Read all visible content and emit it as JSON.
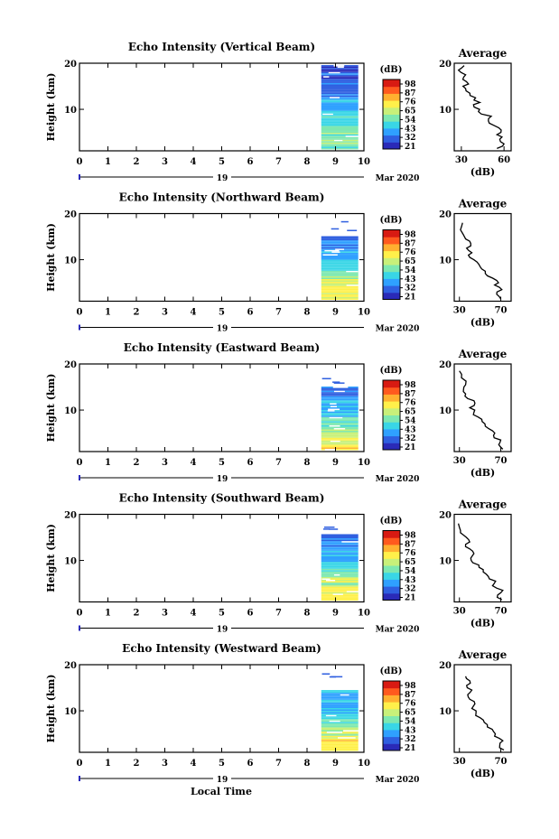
{
  "figure": {
    "date_day": "19",
    "date_label": "Mar 2020",
    "xlabel": "Local Time",
    "ylabel": "Height (km)",
    "units": "(dB)",
    "avg_title": "Average",
    "avg_xlabel": "(dB)",
    "colorbar_ticks": [
      "98",
      "87",
      "76",
      "65",
      "54",
      "43",
      "32",
      "21"
    ],
    "colorscale": [
      "#2a2ab8",
      "#2f5fe0",
      "#2fa0ff",
      "#39d6e6",
      "#7ee8b0",
      "#c8f07a",
      "#fff04a",
      "#ffb030",
      "#ff5a1e",
      "#d81a12"
    ]
  },
  "chart_data": [
    {
      "type": "heatmap",
      "title": "Echo Intensity (Vertical Beam)",
      "x_ticks": [
        "0",
        "1",
        "2",
        "3",
        "4",
        "5",
        "6",
        "7",
        "8",
        "9",
        "10"
      ],
      "y_ticks": [
        "20",
        "10"
      ],
      "xlim": [
        0,
        10
      ],
      "ylim": [
        1,
        20
      ],
      "data_x_range": [
        8.5,
        9.8
      ],
      "data_top_km": 19.5,
      "zlim": [
        21,
        98
      ],
      "average": {
        "x_ticks": [
          "30",
          "60"
        ],
        "xlim": [
          25,
          65
        ],
        "profile": [
          {
            "h": 1.5,
            "db": 55
          },
          {
            "h": 2.5,
            "db": 60
          },
          {
            "h": 3.5,
            "db": 57
          },
          {
            "h": 4.5,
            "db": 55
          },
          {
            "h": 5.5,
            "db": 58
          },
          {
            "h": 6.5,
            "db": 53
          },
          {
            "h": 7.5,
            "db": 49
          },
          {
            "h": 8.5,
            "db": 51
          },
          {
            "h": 9.5,
            "db": 42
          },
          {
            "h": 10.5,
            "db": 39
          },
          {
            "h": 11.5,
            "db": 43
          },
          {
            "h": 12.5,
            "db": 40
          },
          {
            "h": 13.5,
            "db": 36
          },
          {
            "h": 14.5,
            "db": 33
          },
          {
            "h": 15.5,
            "db": 35
          },
          {
            "h": 16.5,
            "db": 31
          },
          {
            "h": 17.5,
            "db": 33
          },
          {
            "h": 18.5,
            "db": 28
          },
          {
            "h": 19.5,
            "db": 32
          }
        ]
      }
    },
    {
      "type": "heatmap",
      "title": "Echo Intensity (Northward Beam)",
      "x_ticks": [
        "0",
        "1",
        "2",
        "3",
        "4",
        "5",
        "6",
        "7",
        "8",
        "9",
        "10"
      ],
      "y_ticks": [
        "20",
        "10"
      ],
      "xlim": [
        0,
        10
      ],
      "ylim": [
        1,
        20
      ],
      "data_x_range": [
        8.5,
        9.8
      ],
      "data_top_km": 15,
      "zlim": [
        21,
        98
      ],
      "average": {
        "x_ticks": [
          "30",
          "70"
        ],
        "xlim": [
          25,
          80
        ],
        "profile": [
          {
            "h": 1.5,
            "db": 70
          },
          {
            "h": 2.5,
            "db": 66
          },
          {
            "h": 3.5,
            "db": 71
          },
          {
            "h": 4.5,
            "db": 64
          },
          {
            "h": 5.5,
            "db": 66
          },
          {
            "h": 6.5,
            "db": 57
          },
          {
            "h": 7.5,
            "db": 55
          },
          {
            "h": 8.5,
            "db": 50
          },
          {
            "h": 9.5,
            "db": 47
          },
          {
            "h": 10.5,
            "db": 40
          },
          {
            "h": 11.5,
            "db": 42
          },
          {
            "h": 12.5,
            "db": 37
          },
          {
            "h": 13.5,
            "db": 41
          },
          {
            "h": 14.5,
            "db": 36
          },
          {
            "h": 16.5,
            "db": 31
          },
          {
            "h": 18,
            "db": 33
          }
        ]
      }
    },
    {
      "type": "heatmap",
      "title": "Echo Intensity (Eastward Beam)",
      "x_ticks": [
        "0",
        "1",
        "2",
        "3",
        "4",
        "5",
        "6",
        "7",
        "8",
        "9",
        "10"
      ],
      "y_ticks": [
        "20",
        "10"
      ],
      "xlim": [
        0,
        10
      ],
      "ylim": [
        1,
        20
      ],
      "data_x_range": [
        8.5,
        9.8
      ],
      "data_top_km": 15,
      "zlim": [
        21,
        98
      ],
      "average": {
        "x_ticks": [
          "30",
          "70"
        ],
        "xlim": [
          25,
          80
        ],
        "profile": [
          {
            "h": 1.5,
            "db": 72
          },
          {
            "h": 2.5,
            "db": 68
          },
          {
            "h": 3.5,
            "db": 70
          },
          {
            "h": 4.5,
            "db": 63
          },
          {
            "h": 5.5,
            "db": 62
          },
          {
            "h": 6.5,
            "db": 55
          },
          {
            "h": 7.5,
            "db": 52
          },
          {
            "h": 8.5,
            "db": 48
          },
          {
            "h": 9.5,
            "db": 44
          },
          {
            "h": 10.5,
            "db": 40
          },
          {
            "h": 11.5,
            "db": 45
          },
          {
            "h": 12.5,
            "db": 38
          },
          {
            "h": 13.5,
            "db": 36
          },
          {
            "h": 14.5,
            "db": 34
          },
          {
            "h": 15.5,
            "db": 36
          },
          {
            "h": 17,
            "db": 32
          },
          {
            "h": 18.5,
            "db": 30
          }
        ]
      }
    },
    {
      "type": "heatmap",
      "title": "Echo Intensity (Southward Beam)",
      "x_ticks": [
        "0",
        "1",
        "2",
        "3",
        "4",
        "5",
        "6",
        "7",
        "8",
        "9",
        "10"
      ],
      "y_ticks": [
        "20",
        "10"
      ],
      "xlim": [
        0,
        10
      ],
      "ylim": [
        1,
        20
      ],
      "data_x_range": [
        8.5,
        9.8
      ],
      "data_top_km": 15.5,
      "zlim": [
        21,
        98
      ],
      "average": {
        "x_ticks": [
          "30",
          "70"
        ],
        "xlim": [
          25,
          80
        ],
        "profile": [
          {
            "h": 1.5,
            "db": 71
          },
          {
            "h": 2.5,
            "db": 67
          },
          {
            "h": 3.5,
            "db": 72
          },
          {
            "h": 4.5,
            "db": 62
          },
          {
            "h": 5.5,
            "db": 65
          },
          {
            "h": 6.5,
            "db": 58
          },
          {
            "h": 7.5,
            "db": 53
          },
          {
            "h": 8.5,
            "db": 49
          },
          {
            "h": 9.5,
            "db": 43
          },
          {
            "h": 10.5,
            "db": 41
          },
          {
            "h": 11.5,
            "db": 44
          },
          {
            "h": 12.5,
            "db": 40
          },
          {
            "h": 13.5,
            "db": 36
          },
          {
            "h": 14.5,
            "db": 39
          },
          {
            "h": 15.5,
            "db": 34
          },
          {
            "h": 16.5,
            "db": 31
          },
          {
            "h": 18,
            "db": 29
          }
        ]
      }
    },
    {
      "type": "heatmap",
      "title": "Echo Intensity (Westward Beam)",
      "x_ticks": [
        "0",
        "1",
        "2",
        "3",
        "4",
        "5",
        "6",
        "7",
        "8",
        "9",
        "10"
      ],
      "y_ticks": [
        "20",
        "10"
      ],
      "xlim": [
        0,
        10
      ],
      "ylim": [
        1,
        20
      ],
      "data_x_range": [
        8.5,
        9.8
      ],
      "data_top_km": 14.5,
      "zlim": [
        21,
        98
      ],
      "average": {
        "x_ticks": [
          "30",
          "70"
        ],
        "xlim": [
          25,
          80
        ],
        "profile": [
          {
            "h": 1.5,
            "db": 73
          },
          {
            "h": 2.5,
            "db": 69
          },
          {
            "h": 3.5,
            "db": 72
          },
          {
            "h": 4.5,
            "db": 64
          },
          {
            "h": 5.5,
            "db": 63
          },
          {
            "h": 6.5,
            "db": 57
          },
          {
            "h": 7.5,
            "db": 54
          },
          {
            "h": 8.5,
            "db": 50
          },
          {
            "h": 9.5,
            "db": 46
          },
          {
            "h": 10.5,
            "db": 42
          },
          {
            "h": 11.5,
            "db": 45
          },
          {
            "h": 12.5,
            "db": 40
          },
          {
            "h": 13.5,
            "db": 38
          },
          {
            "h": 14.5,
            "db": 42
          },
          {
            "h": 15.5,
            "db": 37
          },
          {
            "h": 16.5,
            "db": 40
          },
          {
            "h": 17.5,
            "db": 36
          }
        ]
      }
    }
  ]
}
